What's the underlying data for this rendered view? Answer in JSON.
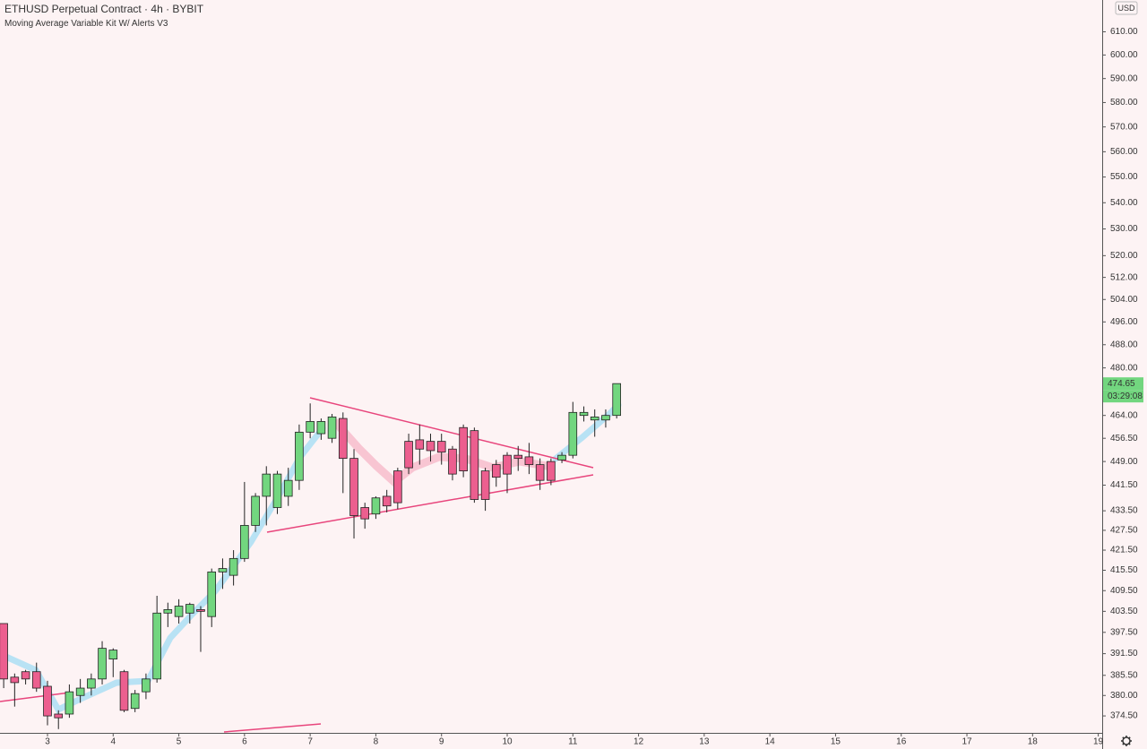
{
  "chart_data": {
    "type": "candlestick",
    "title": "ETHUSD Perpetual Contract · 4h · BYBIT",
    "subtitle": "Moving Average Variable Kit W/ Alerts V3",
    "currency": "USD",
    "last_price_label": "474.65",
    "countdown": "03:29:08",
    "log_scale": true,
    "grid": false,
    "up_color": "#72d67f",
    "down_color": "#ec5f8f",
    "x": [
      2.333,
      2.5,
      2.667,
      2.833,
      3,
      3.167,
      3.333,
      3.5,
      3.667,
      3.833,
      4,
      4.167,
      4.333,
      4.5,
      4.667,
      4.833,
      5,
      5.167,
      5.333,
      5.5,
      5.667,
      5.833,
      6,
      6.167,
      6.333,
      6.5,
      6.667,
      6.833,
      7,
      7.167,
      7.333,
      7.5,
      7.667,
      7.833,
      8,
      8.167,
      8.333,
      8.5,
      8.667,
      8.833,
      9,
      9.167,
      9.333,
      9.5,
      9.667,
      9.833,
      10,
      10.167,
      10.333,
      10.5,
      10.667,
      10.833,
      11,
      11.167,
      11.333,
      11.5,
      11.667
    ],
    "open": [
      400,
      385,
      386.5,
      386.5,
      382.5,
      375,
      375,
      380,
      382,
      384.5,
      390,
      386.5,
      376.5,
      381,
      384.5,
      403,
      402,
      403,
      404,
      402,
      415,
      414,
      419,
      429,
      438,
      434.5,
      438,
      443,
      458.5,
      458,
      456.5,
      463,
      450,
      434.5,
      432.5,
      438,
      446,
      455.5,
      456,
      455.5,
      455.5,
      453,
      460,
      459,
      446,
      448,
      451,
      451,
      450.5,
      448,
      449,
      449.5,
      451,
      464,
      462.5,
      462.5,
      464
    ],
    "high": [
      400,
      386,
      387,
      389,
      384,
      376,
      383,
      384.5,
      386,
      395,
      393,
      387,
      381.5,
      386,
      408,
      406,
      407,
      406,
      405,
      416,
      419,
      421.5,
      442.5,
      439,
      447.5,
      446,
      447,
      461,
      468,
      463,
      464.5,
      465,
      453,
      436,
      438,
      440,
      447,
      458,
      461,
      458,
      458,
      454,
      461,
      460,
      447,
      449.5,
      452,
      454,
      455,
      450,
      450,
      452,
      468.5,
      467,
      466,
      466,
      474.65
    ],
    "low": [
      382,
      377,
      383,
      381,
      372,
      371,
      374,
      378,
      380,
      383,
      385,
      375.5,
      375.5,
      379,
      383.5,
      399,
      400,
      400,
      392,
      399,
      410,
      411,
      418,
      427,
      429,
      432.5,
      435,
      440,
      456.5,
      456,
      455,
      439,
      425,
      428,
      431,
      433,
      434,
      445,
      448,
      449,
      448,
      443,
      444,
      436,
      433.5,
      441,
      439,
      446,
      445,
      440,
      441.5,
      448.5,
      450,
      462,
      457,
      460,
      463
    ],
    "close": [
      384.5,
      383.5,
      384.5,
      382,
      374.5,
      374,
      381,
      382,
      384.5,
      393,
      392.5,
      376,
      380.5,
      384.5,
      403,
      404,
      405,
      405.5,
      403.5,
      415,
      416,
      419,
      429,
      438,
      445,
      445,
      443,
      458.5,
      462,
      462,
      463.5,
      450,
      432,
      431,
      437.5,
      435,
      436,
      447,
      453,
      452.5,
      452,
      445,
      446,
      437,
      437,
      444,
      445,
      450,
      448,
      443,
      443,
      451,
      465,
      465,
      463.5,
      464,
      474.65
    ],
    "xlim": [
      2.277,
      19.06
    ],
    "xticks": [
      3,
      4,
      5,
      6,
      7,
      8,
      9,
      10,
      11,
      12,
      13,
      14,
      15,
      16,
      17,
      18,
      19
    ],
    "ylim": [
      370,
      624
    ],
    "yticks": [
      {
        "value": 374.5,
        "label": "374.50"
      },
      {
        "value": 380,
        "label": "380.00"
      },
      {
        "value": 385.5,
        "label": "385.50"
      },
      {
        "value": 391.5,
        "label": "391.50"
      },
      {
        "value": 397.5,
        "label": "397.50"
      },
      {
        "value": 403.5,
        "label": "403.50"
      },
      {
        "value": 409.5,
        "label": "409.50"
      },
      {
        "value": 415.5,
        "label": "415.50"
      },
      {
        "value": 421.5,
        "label": "421.50"
      },
      {
        "value": 427.5,
        "label": "427.50"
      },
      {
        "value": 433.5,
        "label": "433.50"
      },
      {
        "value": 441.5,
        "label": "441.50"
      },
      {
        "value": 449,
        "label": "449.00"
      },
      {
        "value": 456.5,
        "label": "456.50"
      },
      {
        "value": 464,
        "label": "464.00"
      },
      {
        "value": 480,
        "label": "480.00"
      },
      {
        "value": 488,
        "label": "488.00"
      },
      {
        "value": 496,
        "label": "496.00"
      },
      {
        "value": 504,
        "label": "504.00"
      },
      {
        "value": 512,
        "label": "512.00"
      },
      {
        "value": 520,
        "label": "520.00"
      },
      {
        "value": 530,
        "label": "530.00"
      },
      {
        "value": 540,
        "label": "540.00"
      },
      {
        "value": 550,
        "label": "550.00"
      },
      {
        "value": 560,
        "label": "560.00"
      },
      {
        "value": 570,
        "label": "570.00"
      },
      {
        "value": 580,
        "label": "580.00"
      },
      {
        "value": 590,
        "label": "590.00"
      },
      {
        "value": 600,
        "label": "600.00"
      },
      {
        "value": 610,
        "label": "610.00"
      }
    ]
  }
}
